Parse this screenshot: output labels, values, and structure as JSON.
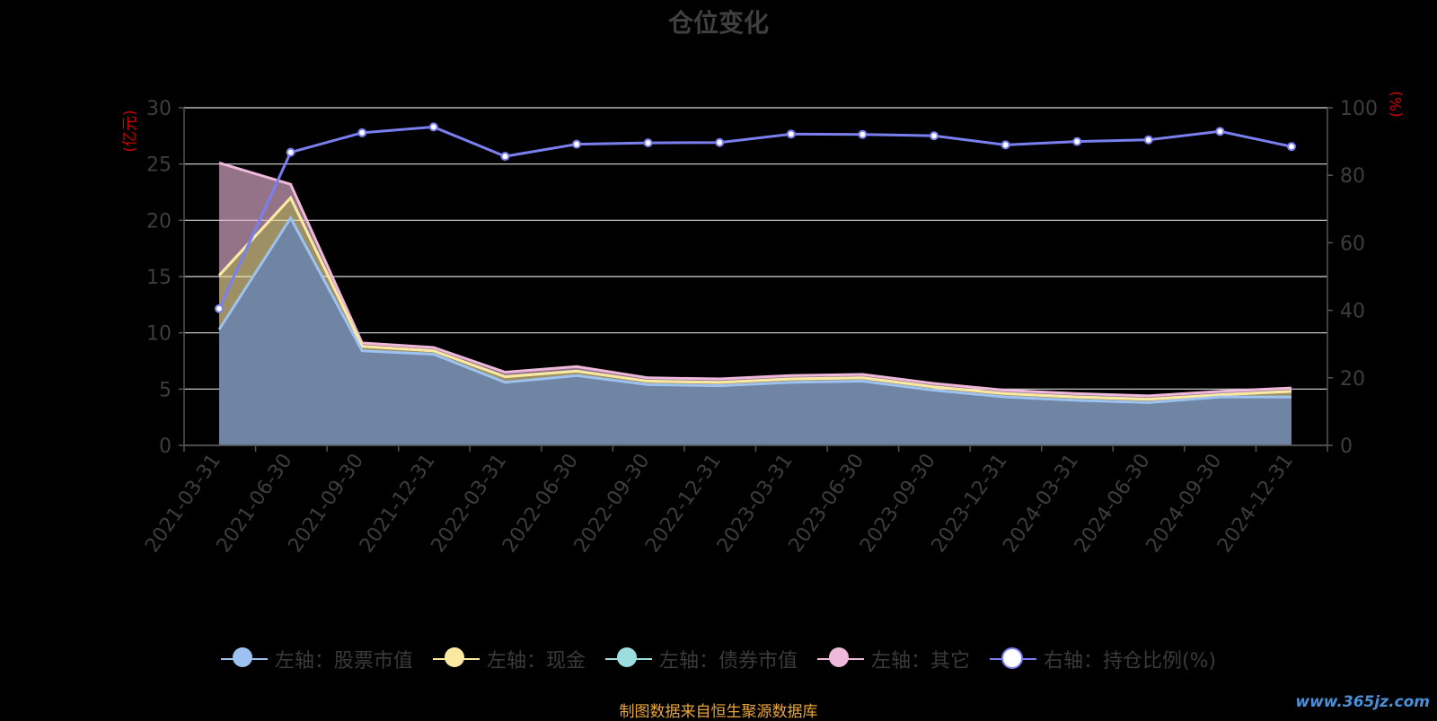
{
  "title": "仓位变化",
  "source_note": "制图数据来自恒生聚源数据库",
  "watermark": "www.365jz.com",
  "colors": {
    "background": "#000000",
    "grid": "#d9d9d9",
    "axis_label": "#3d3d3d",
    "axis_unit": "#cc0000",
    "stock": "#9ec2ef",
    "cash": "#fbe8a1",
    "bond": "#9cdde0",
    "other": "#efb9dc",
    "ratio_line": "#7a7ff0",
    "ratio_dot_fill": "#ffffff"
  },
  "chart_data": {
    "type": "area",
    "title": "仓位变化",
    "x": [
      "2021-03-31",
      "2021-06-30",
      "2021-09-30",
      "2021-12-31",
      "2022-03-31",
      "2022-06-30",
      "2022-09-30",
      "2022-12-31",
      "2023-03-31",
      "2023-06-30",
      "2023-09-30",
      "2023-12-31",
      "2024-03-31",
      "2024-06-30",
      "2024-09-30",
      "2024-12-31"
    ],
    "left_axis": {
      "unit": "(亿元)",
      "range": [
        0,
        30
      ],
      "ticks": [
        "0",
        "5",
        "10",
        "15",
        "20",
        "25",
        "30"
      ]
    },
    "right_axis": {
      "unit": "(%)",
      "range": [
        0,
        100
      ],
      "ticks": [
        "0",
        "20",
        "40",
        "60",
        "80",
        "100"
      ]
    },
    "stacked": true,
    "grid": true,
    "legend_position": "bottom",
    "series": [
      {
        "name": "左轴：股票市值",
        "axis": "left",
        "color": "#9ec2ef",
        "values": [
          10.3,
          20.2,
          8.4,
          8.1,
          5.6,
          6.2,
          5.4,
          5.3,
          5.6,
          5.7,
          4.9,
          4.3,
          4.0,
          3.8,
          4.3,
          4.3
        ]
      },
      {
        "name": "左轴：现金",
        "axis": "left",
        "color": "#fbe8a1",
        "values": [
          4.8,
          1.8,
          0.4,
          0.3,
          0.5,
          0.4,
          0.3,
          0.3,
          0.3,
          0.3,
          0.3,
          0.3,
          0.3,
          0.3,
          0.2,
          0.5
        ]
      },
      {
        "name": "左轴：债券市值",
        "axis": "left",
        "color": "#9cdde0",
        "values": [
          0.0,
          0.0,
          0.0,
          0.0,
          0.0,
          0.0,
          0.0,
          0.0,
          0.0,
          0.0,
          0.0,
          0.0,
          0.0,
          0.0,
          0.0,
          0.0
        ]
      },
      {
        "name": "左轴：其它",
        "axis": "left",
        "color": "#efb9dc",
        "values": [
          10.0,
          1.2,
          0.3,
          0.3,
          0.4,
          0.4,
          0.3,
          0.3,
          0.3,
          0.3,
          0.3,
          0.3,
          0.3,
          0.3,
          0.3,
          0.3
        ]
      },
      {
        "name": "右轴：持仓比例(%)",
        "axis": "right",
        "type": "line",
        "color": "#7a7ff0",
        "values": [
          40.5,
          86.8,
          92.6,
          94.3,
          85.6,
          89.2,
          89.6,
          89.7,
          92.2,
          92.1,
          91.7,
          89.0,
          90.0,
          90.5,
          93.0,
          88.5
        ]
      }
    ]
  },
  "legend": {
    "items": [
      {
        "label": "左轴：股票市值",
        "color": "#9ec2ef"
      },
      {
        "label": "左轴：现金",
        "color": "#fbe8a1"
      },
      {
        "label": "左轴：债券市值",
        "color": "#9cdde0"
      },
      {
        "label": "左轴：其它",
        "color": "#efb9dc"
      },
      {
        "label": "右轴：持仓比例(%)",
        "color": "#7a7ff0",
        "hollow": true
      }
    ]
  }
}
